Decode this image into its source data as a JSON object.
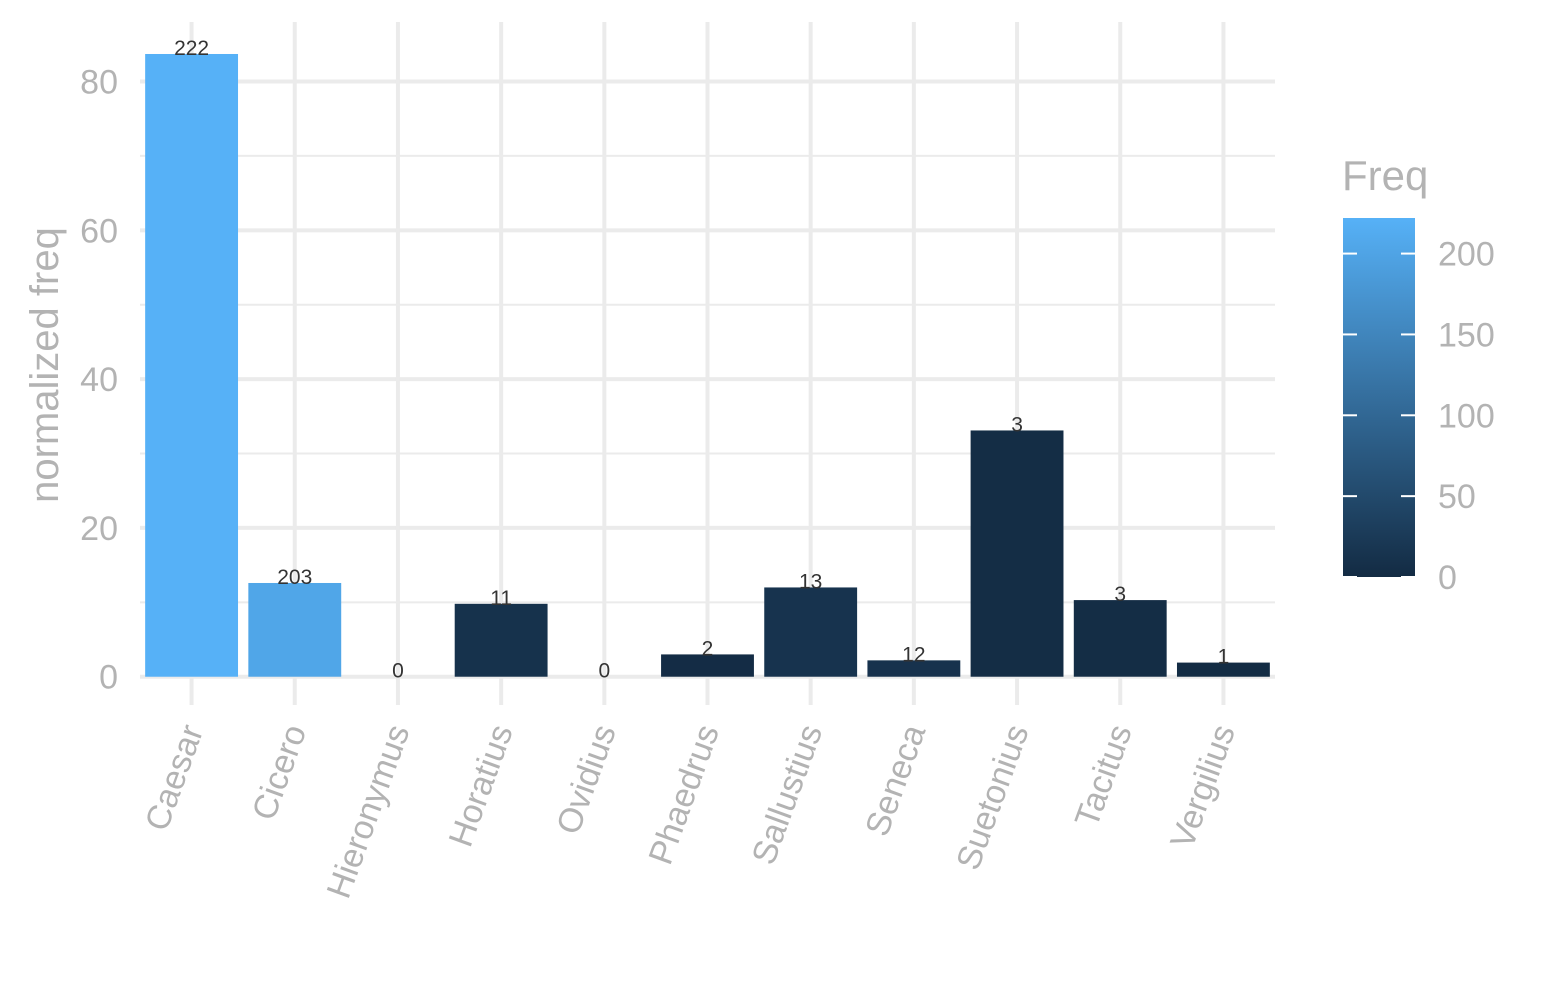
{
  "chart_data": {
    "type": "bar",
    "categories": [
      "Caesar",
      "Cicero",
      "Hieronymus",
      "Horatius",
      "Ovidius",
      "Phaedrus",
      "Sallustius",
      "Seneca",
      "Suetonius",
      "Tacitus",
      "Vergilius"
    ],
    "values": [
      83.7,
      12.6,
      0,
      9.8,
      0,
      3.0,
      12.0,
      2.2,
      33.1,
      10.3,
      1.9
    ],
    "fill_values": [
      222,
      203,
      0,
      11,
      0,
      2,
      13,
      12,
      3,
      3,
      1
    ],
    "labels": [
      "222",
      "203",
      "0",
      "11",
      "0",
      "2",
      "13",
      "12",
      "3",
      "3",
      "1"
    ],
    "ylabel": "normalized freq",
    "xlabel": "",
    "ylim": [
      -3.8,
      88
    ],
    "yticks": [
      0,
      20,
      40,
      60,
      80
    ],
    "ytick_labels": [
      "0",
      "20",
      "40",
      "60",
      "80"
    ],
    "grid": true,
    "legend": {
      "title": "Freq",
      "type": "colorbar",
      "placement": "right",
      "range": [
        0,
        222
      ],
      "ticks": [
        0,
        50,
        100,
        150,
        200
      ],
      "tick_labels": [
        "0",
        "50",
        "100",
        "150",
        "200"
      ],
      "low_color": "#132B43",
      "high_color": "#56B1F7"
    },
    "colors": {
      "grid": "#ebebeb",
      "tick_text": "#b3b3b3",
      "label_text": "#333333"
    }
  }
}
